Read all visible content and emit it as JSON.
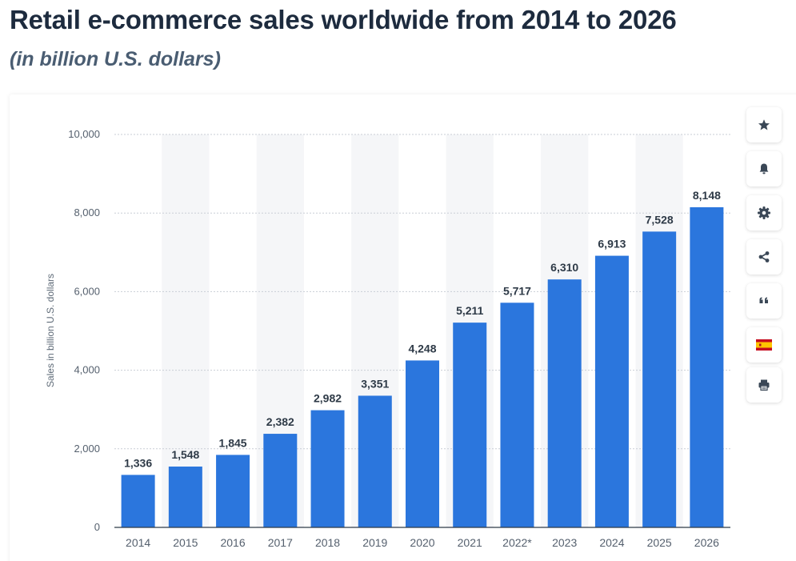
{
  "header": {
    "title": "Retail e-commerce sales worldwide from 2014 to 2026",
    "subtitle": "(in billion U.S. dollars)"
  },
  "toolbar": {
    "items": [
      {
        "name": "favorite",
        "icon": "star-icon"
      },
      {
        "name": "notification",
        "icon": "bell-icon"
      },
      {
        "name": "settings",
        "icon": "gear-icon"
      },
      {
        "name": "share",
        "icon": "share-icon"
      },
      {
        "name": "cite",
        "icon": "quote-icon"
      },
      {
        "name": "language",
        "icon": "spain-flag-icon"
      },
      {
        "name": "print",
        "icon": "printer-icon"
      }
    ]
  },
  "colors": {
    "bar": "#2b76dd",
    "stripe": "#f5f6f8",
    "grid": "#c9ced6",
    "axis_text": "#55606e",
    "label_text": "#2e3a47"
  },
  "chart_data": {
    "type": "bar",
    "title": "Retail e-commerce sales worldwide from 2014 to 2026",
    "subtitle": "(in billion U.S. dollars)",
    "xlabel": "",
    "ylabel": "Sales in billion U.S. dollars",
    "categories": [
      "2014",
      "2015",
      "2016",
      "2017",
      "2018",
      "2019",
      "2020",
      "2021",
      "2022*",
      "2023",
      "2024",
      "2025",
      "2026"
    ],
    "values": [
      1336,
      1548,
      1845,
      2382,
      2982,
      3351,
      4248,
      5211,
      5717,
      6310,
      6913,
      7528,
      8148
    ],
    "value_labels": [
      "1,336",
      "1,548",
      "1,845",
      "2,382",
      "2,982",
      "3,351",
      "4,248",
      "5,211",
      "5,717",
      "6,310",
      "6,913",
      "7,528",
      "8,148"
    ],
    "ylim": [
      0,
      10000
    ],
    "yticks": [
      0,
      2000,
      4000,
      6000,
      8000,
      10000
    ],
    "ytick_labels": [
      "0",
      "2,000",
      "4,000",
      "6,000",
      "8,000",
      "10,000"
    ],
    "grid": true
  }
}
